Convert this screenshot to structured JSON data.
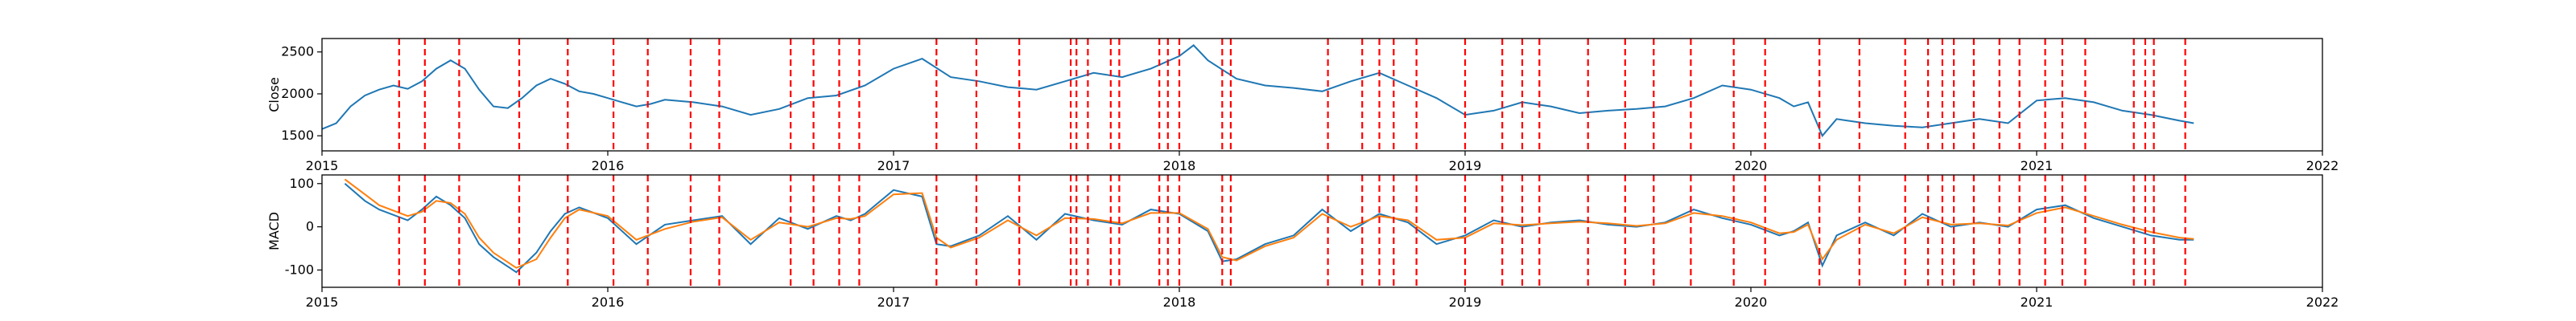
{
  "chart_data": [
    {
      "type": "line",
      "ylabel": "Close",
      "xlim": [
        2015,
        2022
      ],
      "ylim": [
        1320,
        2660
      ],
      "x_ticks": [
        "2015",
        "2016",
        "2017",
        "2018",
        "2019",
        "2020",
        "2021",
        "2022"
      ],
      "y_ticks": [
        1500,
        2000,
        2500
      ],
      "grid": false,
      "series": [
        {
          "color": "#1f77b4",
          "x": [
            2015.0,
            2015.05,
            2015.1,
            2015.15,
            2015.2,
            2015.25,
            2015.3,
            2015.35,
            2015.4,
            2015.45,
            2015.5,
            2015.55,
            2015.6,
            2015.65,
            2015.7,
            2015.75,
            2015.8,
            2015.85,
            2015.9,
            2015.95,
            2016.0,
            2016.05,
            2016.1,
            2016.15,
            2016.2,
            2016.3,
            2016.4,
            2016.5,
            2016.6,
            2016.7,
            2016.8,
            2016.9,
            2017.0,
            2017.1,
            2017.2,
            2017.3,
            2017.4,
            2017.5,
            2017.6,
            2017.7,
            2017.8,
            2017.9,
            2018.0,
            2018.05,
            2018.1,
            2018.2,
            2018.3,
            2018.4,
            2018.5,
            2018.6,
            2018.7,
            2018.8,
            2018.9,
            2019.0,
            2019.1,
            2019.2,
            2019.3,
            2019.4,
            2019.5,
            2019.6,
            2019.7,
            2019.8,
            2019.9,
            2020.0,
            2020.1,
            2020.15,
            2020.2,
            2020.25,
            2020.3,
            2020.4,
            2020.5,
            2020.6,
            2020.7,
            2020.8,
            2020.9,
            2021.0,
            2021.1,
            2021.2,
            2021.3,
            2021.4,
            2021.5,
            2021.55
          ],
          "values": [
            1580,
            1650,
            1850,
            1980,
            2050,
            2100,
            2060,
            2150,
            2300,
            2400,
            2300,
            2050,
            1850,
            1830,
            1950,
            2100,
            2180,
            2120,
            2030,
            2000,
            1950,
            1900,
            1850,
            1880,
            1930,
            1900,
            1850,
            1750,
            1820,
            1950,
            1980,
            2100,
            2300,
            2420,
            2200,
            2150,
            2080,
            2050,
            2150,
            2250,
            2200,
            2300,
            2450,
            2580,
            2400,
            2180,
            2100,
            2070,
            2030,
            2150,
            2250,
            2100,
            1950,
            1750,
            1800,
            1900,
            1850,
            1770,
            1800,
            1820,
            1850,
            1950,
            2100,
            2050,
            1950,
            1850,
            1900,
            1500,
            1700,
            1650,
            1620,
            1600,
            1650,
            1700,
            1650,
            1920,
            1950,
            1900,
            1800,
            1750,
            1680,
            1650
          ]
        }
      ]
    },
    {
      "type": "line",
      "ylabel": "MACD",
      "xlim": [
        2015,
        2022
      ],
      "ylim": [
        -140,
        120
      ],
      "x_ticks": [
        "2015",
        "2016",
        "2017",
        "2018",
        "2019",
        "2020",
        "2021",
        "2022"
      ],
      "y_ticks": [
        -100,
        0,
        100
      ],
      "grid": false,
      "series": [
        {
          "color": "#1f77b4",
          "x": [
            2015.08,
            2015.15,
            2015.2,
            2015.3,
            2015.35,
            2015.4,
            2015.45,
            2015.5,
            2015.55,
            2015.6,
            2015.68,
            2015.75,
            2015.8,
            2015.85,
            2015.9,
            2016.0,
            2016.1,
            2016.2,
            2016.3,
            2016.4,
            2016.5,
            2016.6,
            2016.7,
            2016.8,
            2016.85,
            2016.9,
            2017.0,
            2017.1,
            2017.15,
            2017.2,
            2017.3,
            2017.4,
            2017.5,
            2017.6,
            2017.7,
            2017.8,
            2017.9,
            2018.0,
            2018.1,
            2018.15,
            2018.2,
            2018.3,
            2018.4,
            2018.5,
            2018.6,
            2018.7,
            2018.8,
            2018.9,
            2019.0,
            2019.1,
            2019.2,
            2019.3,
            2019.4,
            2019.5,
            2019.6,
            2019.7,
            2019.8,
            2019.9,
            2020.0,
            2020.1,
            2020.15,
            2020.2,
            2020.25,
            2020.3,
            2020.4,
            2020.5,
            2020.6,
            2020.7,
            2020.8,
            2020.9,
            2021.0,
            2021.1,
            2021.2,
            2021.3,
            2021.4,
            2021.5,
            2021.55
          ],
          "values": [
            100,
            60,
            40,
            15,
            40,
            70,
            50,
            20,
            -40,
            -70,
            -105,
            -60,
            -10,
            30,
            45,
            20,
            -40,
            5,
            15,
            25,
            -40,
            20,
            -5,
            25,
            15,
            30,
            85,
            70,
            -40,
            -45,
            -20,
            25,
            -30,
            30,
            15,
            5,
            40,
            30,
            -10,
            -80,
            -75,
            -40,
            -20,
            40,
            -10,
            30,
            10,
            -40,
            -20,
            15,
            0,
            10,
            15,
            5,
            0,
            10,
            40,
            20,
            5,
            -20,
            -10,
            10,
            -90,
            -20,
            10,
            -20,
            30,
            0,
            10,
            0,
            40,
            50,
            20,
            0,
            -20,
            -30,
            -30
          ]
        },
        {
          "color": "#ff7f0e",
          "x": [
            2015.08,
            2015.15,
            2015.2,
            2015.3,
            2015.35,
            2015.4,
            2015.45,
            2015.5,
            2015.55,
            2015.6,
            2015.68,
            2015.75,
            2015.8,
            2015.85,
            2015.9,
            2016.0,
            2016.1,
            2016.2,
            2016.3,
            2016.4,
            2016.5,
            2016.6,
            2016.7,
            2016.8,
            2016.85,
            2016.9,
            2017.0,
            2017.1,
            2017.15,
            2017.2,
            2017.3,
            2017.4,
            2017.5,
            2017.6,
            2017.7,
            2017.8,
            2017.9,
            2018.0,
            2018.1,
            2018.15,
            2018.2,
            2018.3,
            2018.4,
            2018.5,
            2018.6,
            2018.7,
            2018.8,
            2018.9,
            2019.0,
            2019.1,
            2019.2,
            2019.3,
            2019.4,
            2019.5,
            2019.6,
            2019.7,
            2019.8,
            2019.9,
            2020.0,
            2020.1,
            2020.15,
            2020.2,
            2020.25,
            2020.3,
            2020.4,
            2020.5,
            2020.6,
            2020.7,
            2020.8,
            2020.9,
            2021.0,
            2021.1,
            2021.2,
            2021.3,
            2021.4,
            2021.5,
            2021.55
          ],
          "values": [
            110,
            75,
            50,
            25,
            35,
            60,
            55,
            30,
            -25,
            -60,
            -95,
            -75,
            -25,
            20,
            40,
            25,
            -30,
            -5,
            12,
            22,
            -30,
            10,
            0,
            20,
            18,
            25,
            75,
            78,
            -25,
            -48,
            -25,
            15,
            -20,
            20,
            18,
            8,
            32,
            32,
            -5,
            -70,
            -78,
            -45,
            -25,
            30,
            0,
            25,
            15,
            -30,
            -25,
            8,
            4,
            8,
            12,
            8,
            2,
            8,
            32,
            25,
            10,
            -15,
            -12,
            5,
            -75,
            -30,
            5,
            -15,
            22,
            5,
            8,
            3,
            32,
            45,
            25,
            5,
            -12,
            -25,
            -28
          ]
        }
      ]
    }
  ],
  "signal_dates": [
    2015.27,
    2015.36,
    2015.48,
    2015.69,
    2015.86,
    2016.02,
    2016.14,
    2016.29,
    2016.39,
    2016.64,
    2016.72,
    2016.81,
    2016.88,
    2017.15,
    2017.29,
    2017.44,
    2017.62,
    2017.64,
    2017.68,
    2017.76,
    2017.79,
    2017.93,
    2017.96,
    2018.0,
    2018.15,
    2018.18,
    2018.52,
    2018.64,
    2018.7,
    2018.75,
    2018.83,
    2019.0,
    2019.13,
    2019.2,
    2019.26,
    2019.43,
    2019.56,
    2019.66,
    2019.79,
    2019.94,
    2020.05,
    2020.24,
    2020.38,
    2020.54,
    2020.62,
    2020.67,
    2020.71,
    2020.78,
    2020.87,
    2020.94,
    2021.03,
    2021.09,
    2021.17,
    2021.34,
    2021.38,
    2021.41,
    2021.52
  ],
  "signal_color": "#ff0000"
}
